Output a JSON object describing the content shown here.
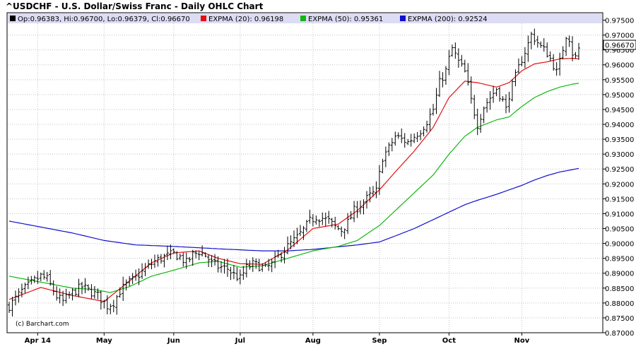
{
  "chart_data": {
    "type": "ohlc",
    "title": "^USDCHF - U.S. Dollar/Swiss Franc - Daily OHLC Chart",
    "copyright": "(c) Barchart.com",
    "last_price_label": "0.96670",
    "legend": {
      "ohlc": "Op:0.96383, Hi:0.96700, Lo:0.96379, Cl:0.96670",
      "ema20": "EXPMA (20): 0.96198",
      "ema50": "EXPMA (50): 0.95361",
      "ema200": "EXPMA (200): 0.92524"
    },
    "y_ticks": [
      "0.87000",
      "0.87500",
      "0.88000",
      "0.88500",
      "0.89000",
      "0.89500",
      "0.90000",
      "0.90500",
      "0.91000",
      "0.91500",
      "0.92000",
      "0.92500",
      "0.93000",
      "0.93500",
      "0.94000",
      "0.94500",
      "0.95000",
      "0.95500",
      "0.96000",
      "0.96500",
      "0.97000",
      "0.97500"
    ],
    "x_labels": [
      {
        "label": "Apr 14",
        "day": 9
      },
      {
        "label": "May",
        "day": 30
      },
      {
        "label": "Jun",
        "day": 52
      },
      {
        "label": "Jul",
        "day": 73
      },
      {
        "label": "Aug",
        "day": 96
      },
      {
        "label": "Sep",
        "day": 117
      },
      {
        "label": "Oct",
        "day": 139
      },
      {
        "label": "Nov",
        "day": 162
      }
    ],
    "ylim": [
      0.87,
      0.9775
    ],
    "grid": true,
    "colors": {
      "ohlc": "#000000",
      "ema20": "#e11010",
      "ema50": "#10b810",
      "ema200": "#1010d0",
      "legend_band": "#dcdcf4",
      "last_price_box": "#ffffff"
    },
    "ema_keypoints": {
      "ema20": [
        [
          0,
          0.8812
        ],
        [
          10,
          0.8852
        ],
        [
          20,
          0.8825
        ],
        [
          30,
          0.8805
        ],
        [
          37,
          0.8865
        ],
        [
          45,
          0.8935
        ],
        [
          52,
          0.8968
        ],
        [
          60,
          0.8975
        ],
        [
          66,
          0.895
        ],
        [
          73,
          0.8932
        ],
        [
          80,
          0.893
        ],
        [
          88,
          0.8978
        ],
        [
          96,
          0.905
        ],
        [
          104,
          0.9065
        ],
        [
          110,
          0.911
        ],
        [
          117,
          0.918
        ],
        [
          122,
          0.924
        ],
        [
          128,
          0.931
        ],
        [
          134,
          0.939
        ],
        [
          139,
          0.949
        ],
        [
          144,
          0.9545
        ],
        [
          148,
          0.954
        ],
        [
          154,
          0.9525
        ],
        [
          158,
          0.954
        ],
        [
          162,
          0.958
        ],
        [
          166,
          0.9603
        ],
        [
          170,
          0.961
        ],
        [
          174,
          0.962
        ],
        [
          178,
          0.9622
        ],
        [
          180,
          0.962
        ]
      ],
      "ema50": [
        [
          0,
          0.889
        ],
        [
          10,
          0.887
        ],
        [
          20,
          0.885
        ],
        [
          27,
          0.8845
        ],
        [
          32,
          0.8835
        ],
        [
          38,
          0.8855
        ],
        [
          45,
          0.889
        ],
        [
          52,
          0.891
        ],
        [
          60,
          0.8935
        ],
        [
          66,
          0.894
        ],
        [
          73,
          0.892
        ],
        [
          80,
          0.8925
        ],
        [
          88,
          0.895
        ],
        [
          96,
          0.8975
        ],
        [
          104,
          0.899
        ],
        [
          110,
          0.901
        ],
        [
          117,
          0.906
        ],
        [
          122,
          0.911
        ],
        [
          128,
          0.917
        ],
        [
          134,
          0.923
        ],
        [
          139,
          0.93
        ],
        [
          144,
          0.936
        ],
        [
          148,
          0.939
        ],
        [
          154,
          0.9415
        ],
        [
          158,
          0.9425
        ],
        [
          162,
          0.946
        ],
        [
          166,
          0.949
        ],
        [
          170,
          0.951
        ],
        [
          174,
          0.9525
        ],
        [
          178,
          0.9535
        ],
        [
          180,
          0.9538
        ]
      ],
      "ema200": [
        [
          0,
          0.9075
        ],
        [
          10,
          0.9055
        ],
        [
          20,
          0.9035
        ],
        [
          30,
          0.901
        ],
        [
          40,
          0.8995
        ],
        [
          52,
          0.899
        ],
        [
          66,
          0.8982
        ],
        [
          80,
          0.8975
        ],
        [
          88,
          0.8975
        ],
        [
          96,
          0.898
        ],
        [
          110,
          0.8995
        ],
        [
          117,
          0.9005
        ],
        [
          122,
          0.9025
        ],
        [
          128,
          0.905
        ],
        [
          134,
          0.908
        ],
        [
          139,
          0.9105
        ],
        [
          144,
          0.913
        ],
        [
          148,
          0.9145
        ],
        [
          154,
          0.9165
        ],
        [
          162,
          0.9195
        ],
        [
          166,
          0.9213
        ],
        [
          170,
          0.9228
        ],
        [
          174,
          0.924
        ],
        [
          180,
          0.9252
        ]
      ]
    },
    "ohlc_keypoints": [
      [
        0,
        0.879
      ],
      [
        4,
        0.884
      ],
      [
        8,
        0.8875
      ],
      [
        10,
        0.889
      ],
      [
        12,
        0.888
      ],
      [
        15,
        0.8822
      ],
      [
        17,
        0.8805
      ],
      [
        20,
        0.8835
      ],
      [
        23,
        0.8855
      ],
      [
        25,
        0.8842
      ],
      [
        28,
        0.8825
      ],
      [
        31,
        0.879
      ],
      [
        33,
        0.8802
      ],
      [
        35,
        0.884
      ],
      [
        37,
        0.8862
      ],
      [
        40,
        0.8885
      ],
      [
        43,
        0.8915
      ],
      [
        46,
        0.894
      ],
      [
        49,
        0.8955
      ],
      [
        52,
        0.8965
      ],
      [
        54,
        0.8955
      ],
      [
        56,
        0.8935
      ],
      [
        58,
        0.8962
      ],
      [
        60,
        0.8972
      ],
      [
        62,
        0.896
      ],
      [
        64,
        0.8935
      ],
      [
        66,
        0.8922
      ],
      [
        69,
        0.8915
      ],
      [
        71,
        0.8895
      ],
      [
        73,
        0.8882
      ],
      [
        75,
        0.8918
      ],
      [
        77,
        0.893
      ],
      [
        79,
        0.8925
      ],
      [
        81,
        0.8915
      ],
      [
        83,
        0.893
      ],
      [
        85,
        0.8955
      ],
      [
        88,
        0.899
      ],
      [
        91,
        0.902
      ],
      [
        93,
        0.9045
      ],
      [
        95,
        0.9075
      ],
      [
        97,
        0.909
      ],
      [
        99,
        0.9085
      ],
      [
        101,
        0.9075
      ],
      [
        103,
        0.9055
      ],
      [
        105,
        0.9045
      ],
      [
        107,
        0.907
      ],
      [
        109,
        0.911
      ],
      [
        111,
        0.913
      ],
      [
        114,
        0.916
      ],
      [
        116,
        0.9175
      ],
      [
        118,
        0.929
      ],
      [
        120,
        0.932
      ],
      [
        122,
        0.936
      ],
      [
        124,
        0.935
      ],
      [
        126,
        0.934
      ],
      [
        128,
        0.936
      ],
      [
        130,
        0.938
      ],
      [
        132,
        0.941
      ],
      [
        134,
        0.945
      ],
      [
        136,
        0.954
      ],
      [
        138,
        0.958
      ],
      [
        139,
        0.962
      ],
      [
        140,
        0.9655
      ],
      [
        142,
        0.961
      ],
      [
        144,
        0.9575
      ],
      [
        145,
        0.953
      ],
      [
        146,
        0.948
      ],
      [
        147,
        0.944
      ],
      [
        148,
        0.94
      ],
      [
        150,
        0.946
      ],
      [
        152,
        0.949
      ],
      [
        154,
        0.952
      ],
      [
        156,
        0.948
      ],
      [
        157,
        0.945
      ],
      [
        158,
        0.95
      ],
      [
        160,
        0.956
      ],
      [
        162,
        0.962
      ],
      [
        164,
        0.967
      ],
      [
        165,
        0.97
      ],
      [
        166,
        0.969
      ],
      [
        168,
        0.966
      ],
      [
        170,
        0.964
      ],
      [
        172,
        0.96
      ],
      [
        173,
        0.9575
      ],
      [
        174,
        0.961
      ],
      [
        176,
        0.97
      ],
      [
        177,
        0.969
      ],
      [
        178,
        0.964
      ],
      [
        179,
        0.9625
      ],
      [
        180,
        0.9655
      ]
    ]
  }
}
